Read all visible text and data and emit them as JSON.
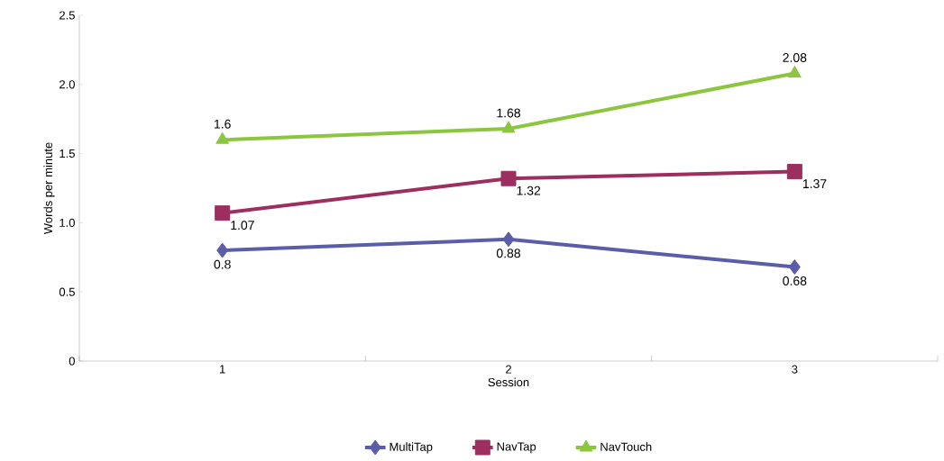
{
  "chart_data": {
    "type": "line",
    "xlabel": "Session",
    "ylabel": "Words per minute",
    "categories": [
      "1",
      "2",
      "3"
    ],
    "series": [
      {
        "name": "MultiTap",
        "color": "#5a5ea8",
        "marker": "diamond",
        "values": [
          0.8,
          0.88,
          0.68
        ]
      },
      {
        "name": "NavTap",
        "color": "#9c2f5f",
        "marker": "square",
        "values": [
          1.07,
          1.32,
          1.37
        ]
      },
      {
        "name": "NavTouch",
        "color": "#8cc63f",
        "marker": "triangle",
        "values": [
          1.6,
          1.68,
          2.08
        ]
      }
    ],
    "ylim": [
      0,
      2.5
    ],
    "yticks": [
      0,
      0.5,
      {
        "value": 1,
        "label": "1.0"
      },
      1.5,
      {
        "value": 2,
        "label": "2.0"
      },
      2.5
    ],
    "data_labels": true,
    "legend": "bottom",
    "grid": false,
    "line_style": "solid"
  }
}
